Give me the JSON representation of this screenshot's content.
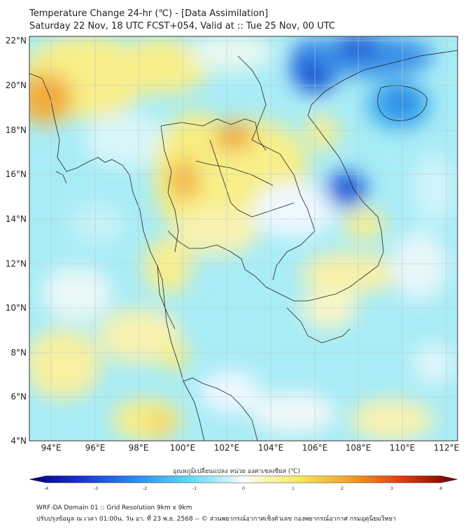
{
  "title_line1": "Temperature Change 24-hr (℃) - [Data Assimilation]",
  "title_line2": "Saturday 22 Nov, 18 UTC FCST+054, Valid at :: Tue 25 Nov, 00 UTC",
  "lat_labels": [
    "22°N",
    "20°N",
    "18°N",
    "16°N",
    "14°N",
    "12°N",
    "10°N",
    "8°N",
    "6°N",
    "4°N"
  ],
  "lon_labels": [
    "94°E",
    "96°E",
    "98°E",
    "100°E",
    "102°E",
    "104°E",
    "106°E",
    "108°E",
    "110°E",
    "112°E"
  ],
  "colorbar": {
    "title": "อุณหภูมิเปลี่ยนแปลง หน่วย องศาเซลเซียส (℃)",
    "labels": [
      "-4",
      "-3",
      "-2",
      "-1",
      "0",
      "1",
      "2",
      "3",
      "4"
    ]
  },
  "footer_line1": "WRF-DA Domain 01 :: Grid Resolution 9km x 9km",
  "footer_line2": "ปรับปรุงข้อมูล ณ เวลา 01:00น. วัน อา. ที่ 23 พ.ย. 2568 -- © ส่วนพยากรณ์อากาศเชิงตัวเลข กองพยากรณ์อากาศ กรมอุตุนิยมวิทยา",
  "colors": {
    "cold_deep": "#1040d0",
    "cold": "#5bd3f0",
    "neutral": "#eef8ff",
    "warm": "#f5ec80",
    "hot": "#f0a030"
  }
}
